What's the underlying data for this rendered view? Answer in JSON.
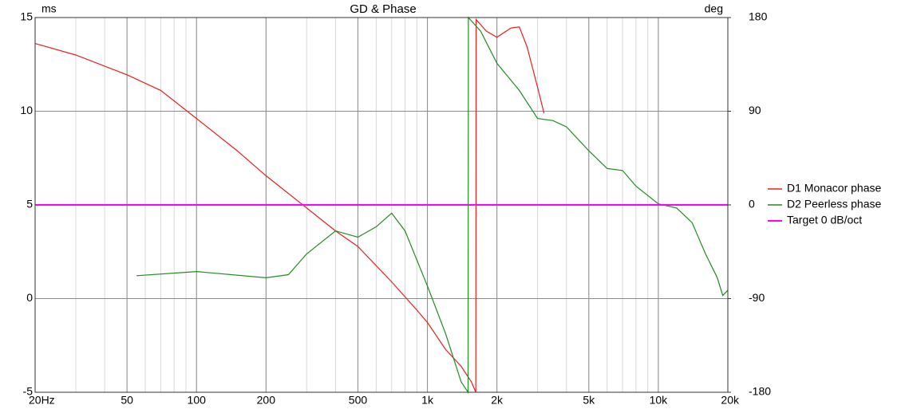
{
  "chart_data": {
    "type": "line",
    "title": "GD & Phase",
    "y_label": "ms",
    "y2_label": "deg",
    "log_x": true,
    "grid": true,
    "minor_grid": true,
    "legend": "right",
    "xlim": [
      20,
      20000
    ],
    "xticks": [
      {
        "value": 20,
        "label": "20Hz"
      },
      50,
      100,
      200,
      500,
      {
        "value": 1000,
        "label": "1k"
      },
      {
        "value": 2000,
        "label": "2k"
      },
      {
        "value": 5000,
        "label": "5k"
      },
      {
        "value": 10000,
        "label": "10k"
      },
      {
        "value": 20000,
        "label": "20k"
      }
    ],
    "ylim": [
      -5,
      15
    ],
    "yticks": [
      -5,
      0,
      5,
      10,
      15
    ],
    "y2lim": [
      -180,
      180
    ],
    "y2ticks": [
      -180,
      -90,
      0,
      90,
      180
    ],
    "series": [
      {
        "name": "D1 Monacor phase",
        "color": "#e8201c",
        "axis": "y2",
        "x": [
          20,
          30,
          50,
          70,
          100,
          150,
          200,
          300,
          400,
          500,
          700,
          900,
          1000,
          1200,
          1400,
          1550,
          1620,
          1625,
          1800,
          2000,
          2300,
          2500,
          2700,
          3000,
          3200
        ],
        "values": [
          155,
          144,
          125,
          110,
          83,
          52,
          28,
          -3,
          -25,
          -40,
          -74,
          -101,
          -113,
          -139,
          -155,
          -170,
          -180,
          178,
          167,
          161,
          170,
          171,
          152,
          113,
          88
        ]
      },
      {
        "name": "D2 Peerless phase",
        "color": "#228b22",
        "axis": "y2",
        "x": [
          55,
          100,
          200,
          250,
          300,
          400,
          500,
          600,
          700,
          800,
          1000,
          1200,
          1400,
          1500,
          1505,
          1700,
          2000,
          2500,
          3000,
          3500,
          4000,
          5000,
          6000,
          7000,
          8000,
          10000,
          12000,
          14000,
          16000,
          18000,
          19000,
          20000
        ],
        "values": [
          -68,
          -64,
          -70,
          -67,
          -47,
          -25,
          -31,
          -21,
          -8,
          -25,
          -78,
          -124,
          -170,
          -180,
          180,
          167,
          136,
          110,
          83,
          81,
          75,
          52,
          35,
          33,
          18,
          1,
          -3,
          -17,
          -47,
          -70,
          -87,
          -82
        ]
      },
      {
        "name": "Target 0 dB/oct",
        "color": "#ff00ff",
        "axis": "y2",
        "width": 2,
        "x": [
          20,
          20000
        ],
        "values": [
          0,
          0
        ]
      }
    ]
  }
}
